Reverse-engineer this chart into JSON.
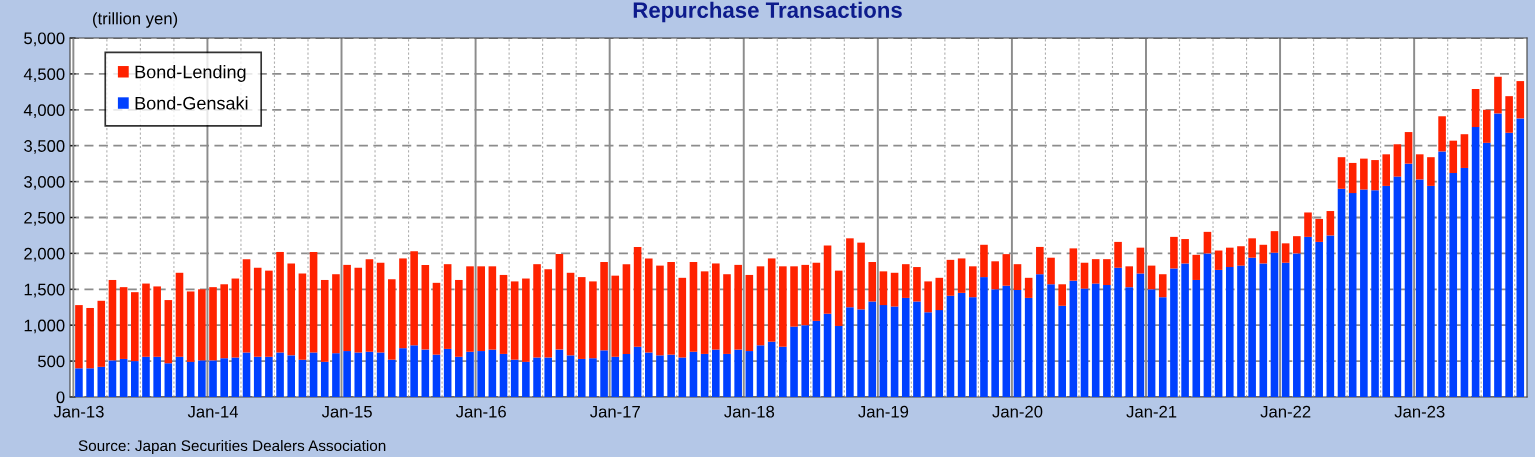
{
  "chart_data": {
    "type": "bar",
    "stacked": true,
    "title": "Repurchase Transactions",
    "ylabel": "(trillion yen)",
    "categories": [
      "Jan-13",
      null,
      null,
      null,
      null,
      null,
      null,
      null,
      null,
      null,
      null,
      null,
      "Jan-14",
      null,
      null,
      null,
      null,
      null,
      null,
      null,
      null,
      null,
      null,
      null,
      "Jan-15",
      null,
      null,
      null,
      null,
      null,
      null,
      null,
      null,
      null,
      null,
      null,
      "Jan-16",
      null,
      null,
      null,
      null,
      null,
      null,
      null,
      null,
      null,
      null,
      null,
      "Jan-17",
      null,
      null,
      null,
      null,
      null,
      null,
      null,
      null,
      null,
      null,
      null,
      "Jan-18",
      null,
      null,
      null,
      null,
      null,
      null,
      null,
      null,
      null,
      null,
      null,
      "Jan-19",
      null,
      null,
      null,
      null,
      null,
      null,
      null,
      null,
      null,
      null,
      null,
      "Jan-20",
      null,
      null,
      null,
      null,
      null,
      null,
      null,
      null,
      null,
      null,
      null,
      "Jan-21",
      null,
      null,
      null,
      null,
      null,
      null,
      null,
      null,
      null,
      null,
      null,
      "Jan-22",
      null,
      null,
      null,
      null,
      null,
      null,
      null,
      null,
      null,
      null,
      null,
      "Jan-23",
      null,
      null,
      null,
      null,
      null,
      null,
      null,
      null,
      null
    ],
    "series": [
      {
        "name": "Bond-Gensaki",
        "color": "#0040ff",
        "values": [
          400,
          400,
          420,
          510,
          530,
          500,
          560,
          560,
          470,
          560,
          490,
          510,
          510,
          540,
          550,
          620,
          560,
          560,
          620,
          580,
          520,
          620,
          490,
          610,
          640,
          620,
          630,
          620,
          520,
          680,
          720,
          660,
          590,
          670,
          560,
          630,
          640,
          660,
          600,
          520,
          490,
          550,
          550,
          660,
          580,
          530,
          540,
          650,
          560,
          600,
          700,
          620,
          580,
          590,
          550,
          630,
          600,
          660,
          600,
          660,
          640,
          720,
          770,
          700,
          980,
          1000,
          1060,
          1160,
          990,
          1250,
          1220,
          1330,
          1280,
          1260,
          1380,
          1330,
          1180,
          1210,
          1410,
          1450,
          1390,
          1670,
          1500,
          1550,
          1490,
          1380,
          1710,
          1570,
          1270,
          1620,
          1510,
          1580,
          1560,
          1800,
          1530,
          1720,
          1500,
          1390,
          1790,
          1860,
          1630,
          2000,
          1770,
          1810,
          1830,
          1940,
          1860,
          2010,
          1870,
          2000,
          2230,
          2160,
          2250,
          2900,
          2840,
          2890,
          2880,
          2940,
          3070,
          3250,
          3030,
          2940,
          3420,
          3120,
          3190,
          3760,
          3540,
          3950,
          3680,
          3880
        ]
      },
      {
        "name": "Bond-Lending",
        "color": "#ff2200",
        "values": [
          880,
          840,
          920,
          1120,
          1000,
          960,
          1020,
          980,
          880,
          1170,
          980,
          990,
          1020,
          1030,
          1100,
          1300,
          1240,
          1200,
          1400,
          1280,
          1200,
          1400,
          1140,
          1100,
          1200,
          1180,
          1290,
          1250,
          1120,
          1250,
          1310,
          1180,
          1000,
          1180,
          1070,
          1190,
          1180,
          1160,
          1100,
          1090,
          1160,
          1300,
          1230,
          1330,
          1150,
          1140,
          1070,
          1230,
          1130,
          1250,
          1390,
          1310,
          1250,
          1290,
          1110,
          1250,
          1150,
          1200,
          1110,
          1180,
          1060,
          1100,
          1160,
          1120,
          840,
          840,
          810,
          950,
          770,
          960,
          930,
          550,
          470,
          470,
          470,
          480,
          430,
          450,
          500,
          480,
          430,
          450,
          390,
          440,
          360,
          280,
          380,
          370,
          300,
          450,
          360,
          340,
          360,
          360,
          290,
          360,
          330,
          320,
          440,
          340,
          350,
          300,
          270,
          270,
          270,
          270,
          260,
          300,
          270,
          240,
          340,
          320,
          340,
          440,
          420,
          430,
          420,
          440,
          450,
          440,
          350,
          400,
          490,
          450,
          470,
          530,
          460,
          510,
          510,
          520
        ]
      }
    ],
    "ylim": [
      0,
      5000
    ],
    "yticks": [
      0,
      500,
      {
        "value": 1000,
        "label": "1,000"
      },
      {
        "value": 1500,
        "label": "1,500"
      },
      {
        "value": 2000,
        "label": "2,000"
      },
      {
        "value": 2500,
        "label": "2,500"
      },
      {
        "value": 3000,
        "label": "3,000"
      },
      {
        "value": 3500,
        "label": "3,500"
      },
      {
        "value": 4000,
        "label": "4,000"
      },
      {
        "value": 4500,
        "label": "4,500"
      },
      {
        "value": 5000,
        "label": "5,000"
      }
    ],
    "grid": true,
    "legend": "top left",
    "annotations": [
      "Source: Japan Securities Dealers Association"
    ]
  }
}
